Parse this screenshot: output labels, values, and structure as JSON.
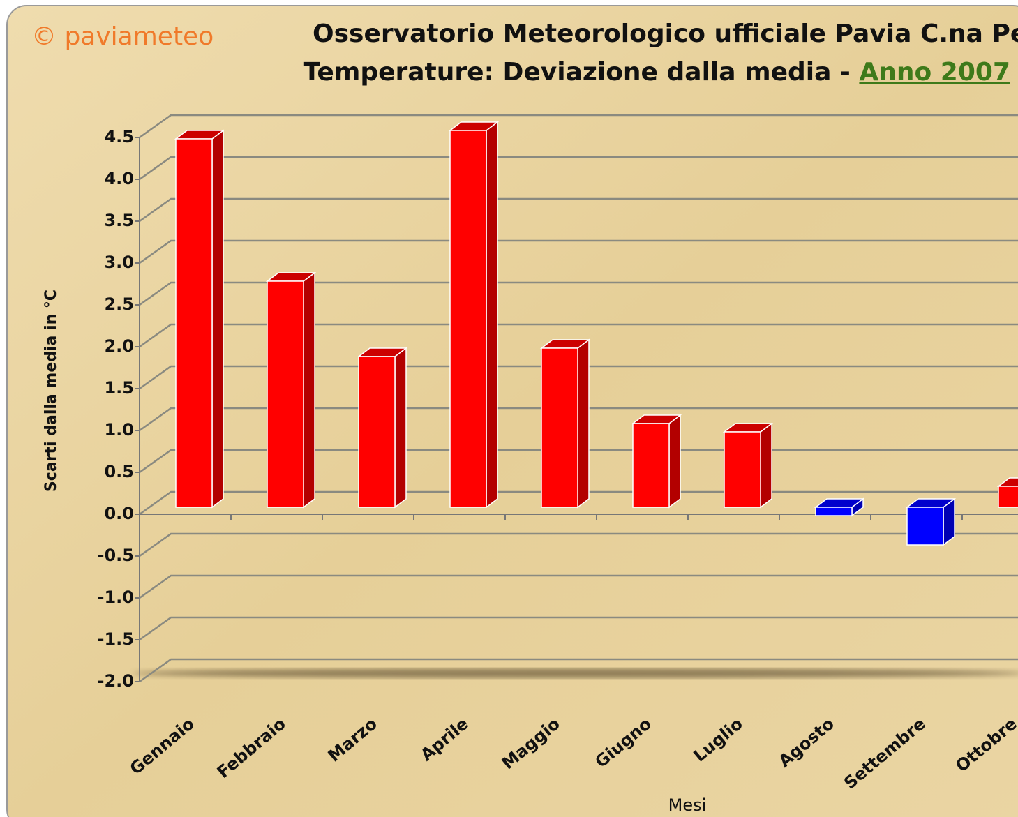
{
  "chart_data": {
    "type": "bar3d",
    "watermark": "© paviameteo",
    "title": "Osservatorio Meteorologico ufficiale Pavia C.na Peliz",
    "subtitle": "Temperature: Deviazione dalla media - ",
    "subtitle_year": "Anno 2007",
    "y_label": "Scarti dalla media in °C",
    "x_label": "Mesi",
    "categories": [
      "Gennaio",
      "Febbraio",
      "Marzo",
      "Aprile",
      "Maggio",
      "Giugno",
      "Luglio",
      "Agosto",
      "Settembre",
      "Ottobre"
    ],
    "values": [
      4.4,
      2.7,
      1.8,
      4.5,
      1.9,
      1.0,
      0.9,
      -0.1,
      -0.45,
      0.25
    ],
    "positive_color": "#ff0000",
    "negative_color": "#0000ff",
    "ylim": [
      -2.0,
      4.5
    ],
    "yticks": [
      {
        "value": -2.0,
        "label": "-2.0"
      },
      -1.5,
      {
        "value": -1.0,
        "label": "-1.0"
      },
      -0.5,
      {
        "value": 0.0,
        "label": "0.0"
      },
      0.5,
      {
        "value": 1.0,
        "label": "1.0"
      },
      1.5,
      {
        "value": 2.0,
        "label": "2.0"
      },
      2.5,
      {
        "value": 3.0,
        "label": "3.0"
      },
      3.5,
      {
        "value": 4.0,
        "label": "4.0"
      },
      4.5
    ],
    "grid": true
  }
}
